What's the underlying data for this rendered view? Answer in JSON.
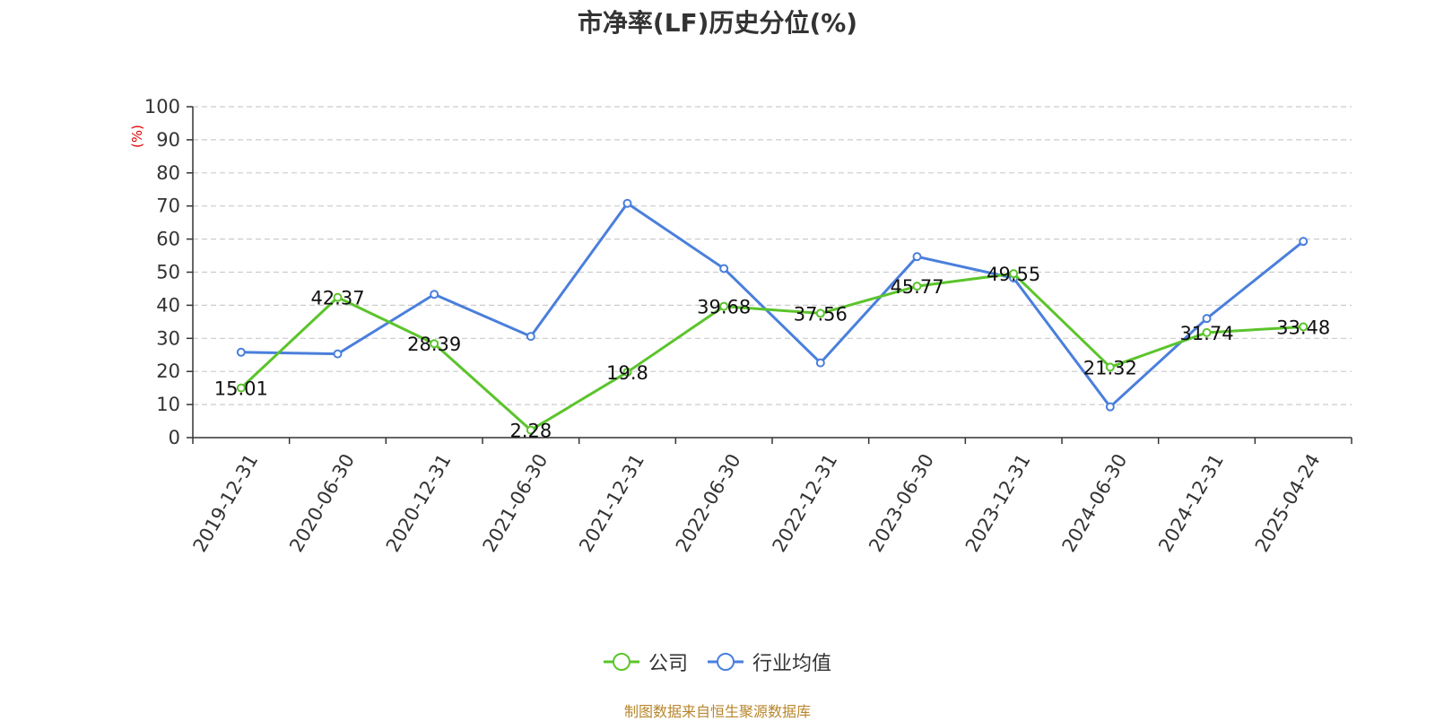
{
  "chart_data": {
    "type": "line",
    "title": "市净率(LF)历史分位(%)",
    "y_unit": "(%)",
    "ylim": [
      0,
      100
    ],
    "y_ticks": [
      0,
      10,
      20,
      30,
      40,
      50,
      60,
      70,
      80,
      90,
      100
    ],
    "grid": true,
    "legend_position": "bottom-center",
    "categories": [
      "2019-12-31",
      "2020-06-30",
      "2020-12-31",
      "2021-06-30",
      "2021-12-31",
      "2022-06-30",
      "2022-12-31",
      "2023-06-30",
      "2023-12-31",
      "2024-06-30",
      "2024-12-31",
      "2025-04-24"
    ],
    "series": [
      {
        "name": "公司",
        "color": "#5bc42c",
        "values": [
          15.01,
          42.37,
          28.39,
          2.28,
          19.8,
          39.68,
          37.56,
          45.77,
          49.55,
          21.32,
          31.74,
          33.48
        ],
        "labels": [
          "15.01",
          "42.37",
          "28.39",
          "2.28",
          "19.8",
          "39.68",
          "37.56",
          "45.77",
          "49.55",
          "21.32",
          "31.74",
          "33.48"
        ]
      },
      {
        "name": "行业均值",
        "color": "#4a7fdc",
        "values": [
          25.8,
          25.3,
          43.3,
          30.6,
          70.8,
          51.1,
          22.6,
          54.7,
          48.2,
          9.3,
          36.0,
          59.3
        ]
      }
    ]
  },
  "source_note": "制图数据来自恒生聚源数据库"
}
